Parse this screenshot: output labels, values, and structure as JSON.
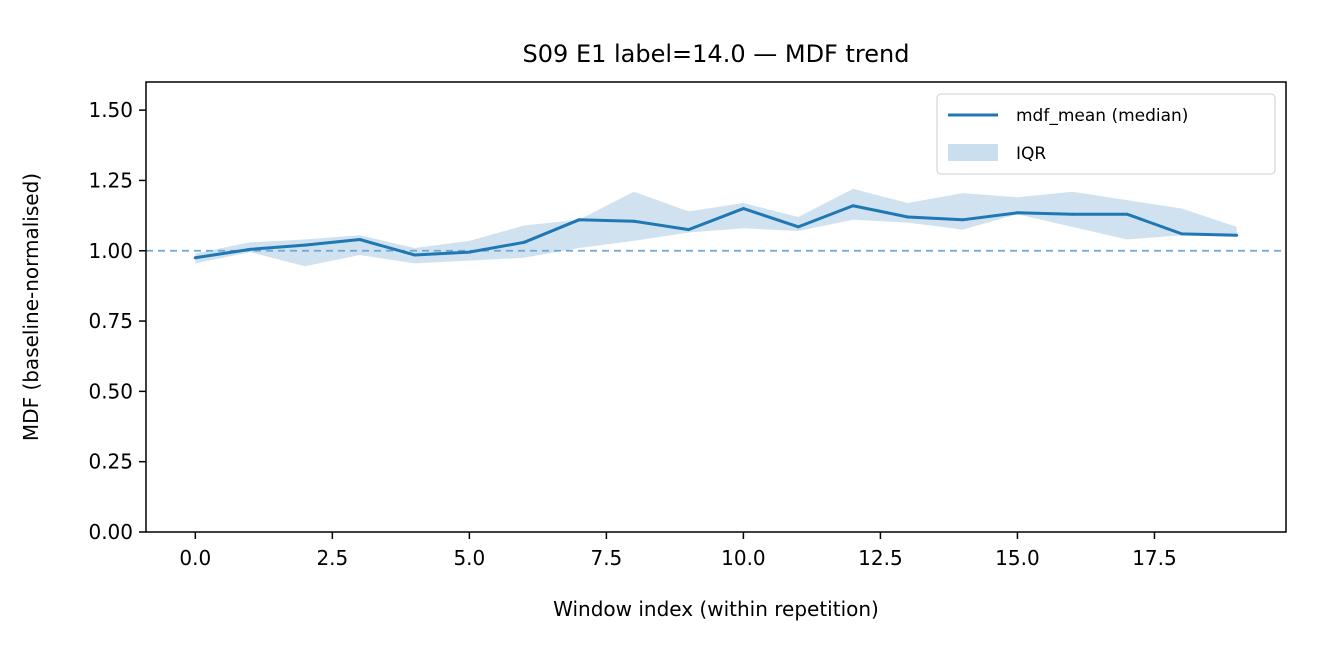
{
  "chart_data": {
    "type": "line",
    "title": "S09 E1 label=14.0 — MDF trend",
    "xlabel": "Window index (within repetition)",
    "ylabel": "MDF (baseline-normalised)",
    "xlim": [
      -0.9,
      19.9
    ],
    "ylim": [
      0.0,
      1.6
    ],
    "xticks": [
      0.0,
      2.5,
      5.0,
      7.5,
      10.0,
      12.5,
      15.0,
      17.5
    ],
    "xtick_labels": [
      "0.0",
      "2.5",
      "5.0",
      "7.5",
      "10.0",
      "12.5",
      "15.0",
      "17.5"
    ],
    "yticks": [
      0.0,
      0.25,
      0.5,
      0.75,
      1.0,
      1.25,
      1.5
    ],
    "ytick_labels": [
      "0.00",
      "0.25",
      "0.50",
      "0.75",
      "1.00",
      "1.25",
      "1.50"
    ],
    "grid": false,
    "legend_position": "top-right",
    "reference_line": {
      "y": 1.0,
      "style": "dashed",
      "color": "#6fa8d6"
    },
    "x": [
      0,
      1,
      2,
      3,
      4,
      5,
      6,
      7,
      8,
      9,
      10,
      11,
      12,
      13,
      14,
      15,
      16,
      17,
      18,
      19
    ],
    "series": [
      {
        "name": "mdf_mean (median)",
        "kind": "line",
        "color": "#1f77b4",
        "values": [
          0.975,
          1.005,
          1.02,
          1.04,
          0.985,
          0.995,
          1.03,
          1.11,
          1.105,
          1.075,
          1.15,
          1.085,
          1.16,
          1.12,
          1.11,
          1.135,
          1.13,
          1.13,
          1.06,
          1.055
        ]
      },
      {
        "name": "IQR",
        "kind": "band",
        "color": "#b7d3e8",
        "upper": [
          0.99,
          1.03,
          1.04,
          1.055,
          1.01,
          1.035,
          1.09,
          1.11,
          1.21,
          1.14,
          1.17,
          1.12,
          1.22,
          1.17,
          1.205,
          1.19,
          1.21,
          1.18,
          1.15,
          1.085
        ],
        "lower": [
          0.955,
          0.995,
          0.945,
          0.985,
          0.955,
          0.965,
          0.975,
          1.01,
          1.035,
          1.065,
          1.08,
          1.07,
          1.11,
          1.1,
          1.075,
          1.13,
          1.085,
          1.04,
          1.055,
          1.05
        ]
      }
    ]
  }
}
